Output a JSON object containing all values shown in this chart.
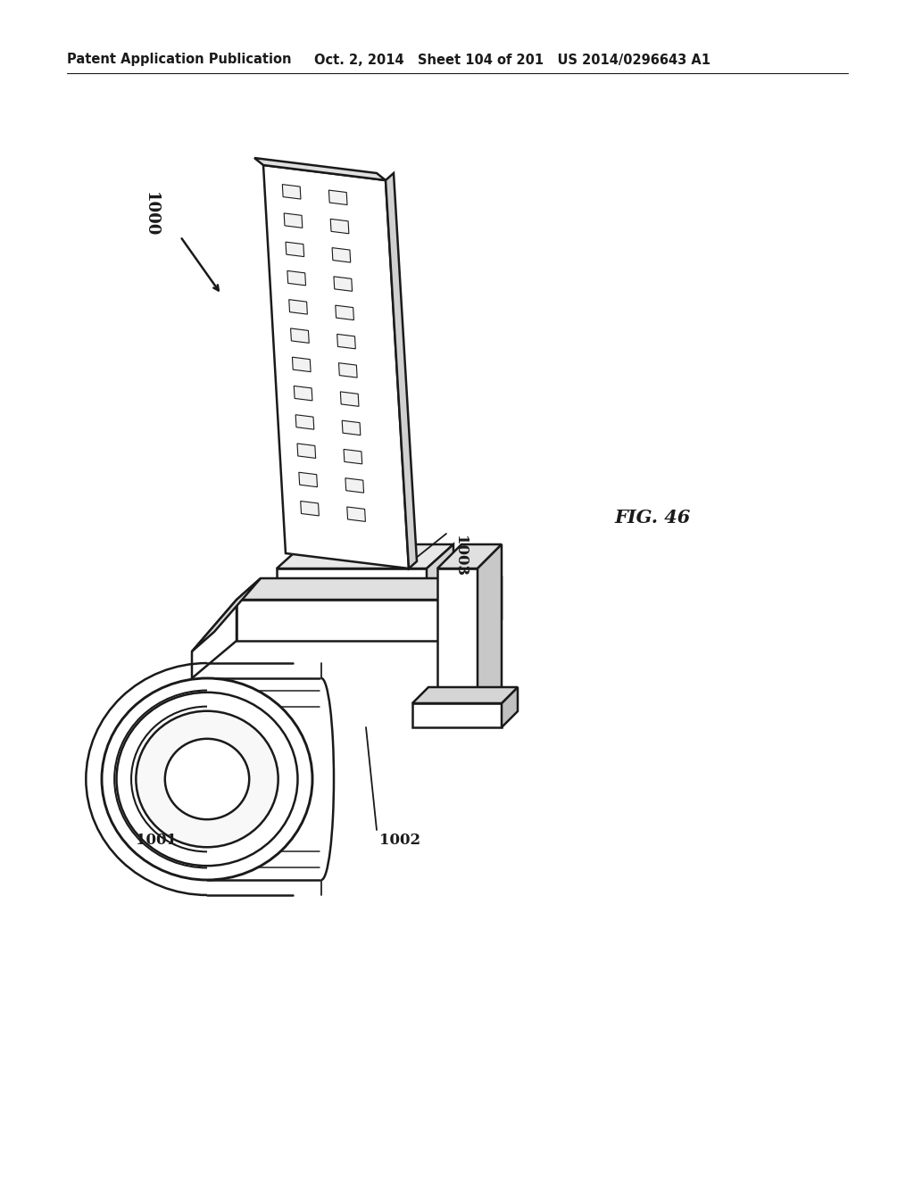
{
  "title_left": "Patent Application Publication",
  "title_right": "Oct. 2, 2014   Sheet 104 of 201   US 2014/0296643 A1",
  "fig_label": "FIG. 46",
  "label_1000": "1000",
  "label_1001": "1001",
  "label_1002": "1002",
  "label_1003": "1003",
  "bg_color": "#ffffff",
  "line_color": "#1a1a1a",
  "line_width": 1.8,
  "header_fontsize": 10.5,
  "fig_fontsize": 15,
  "annotation_fontsize": 12
}
